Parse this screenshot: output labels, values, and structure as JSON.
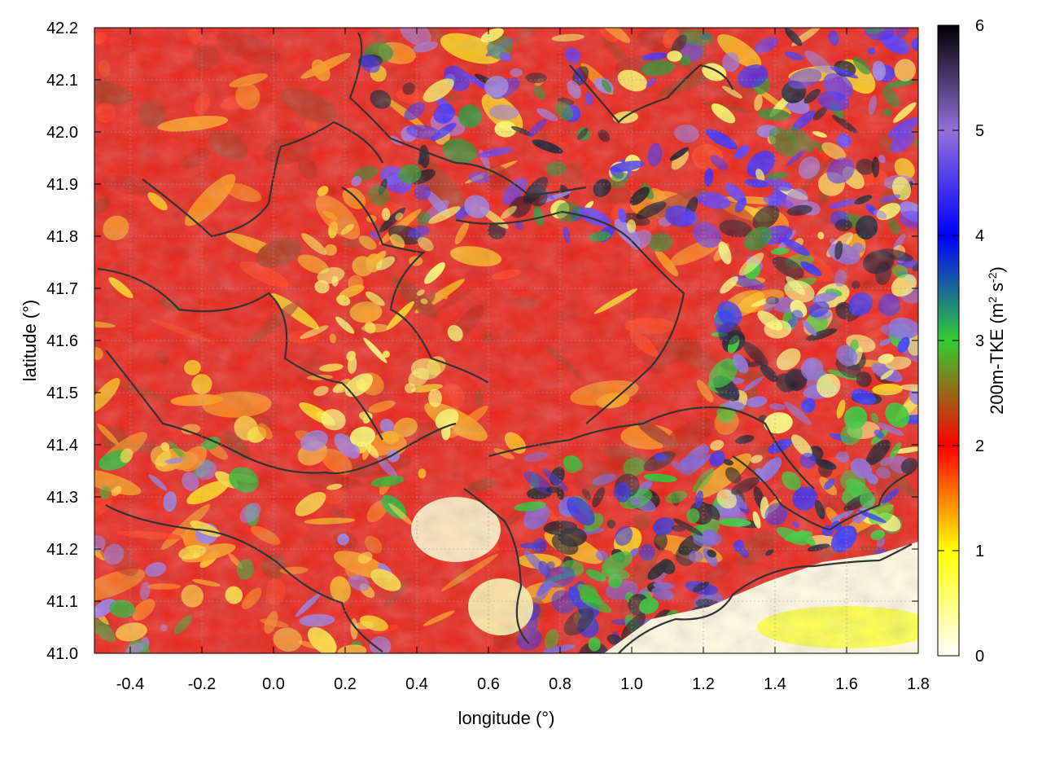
{
  "chart_data": {
    "type": "heatmap",
    "title": "",
    "xlabel": "longitude (°)",
    "ylabel": "latitude (°)",
    "xlim": [
      -0.5,
      1.8
    ],
    "ylim": [
      41.0,
      42.2
    ],
    "x_ticks": [
      "-0.4",
      "-0.2",
      "0.0",
      "0.2",
      "0.4",
      "0.6",
      "0.8",
      "1.0",
      "1.2",
      "1.4",
      "1.6",
      "1.8"
    ],
    "x_tick_values": [
      -0.4,
      -0.2,
      0.0,
      0.2,
      0.4,
      0.6,
      0.8,
      1.0,
      1.2,
      1.4,
      1.6,
      1.8
    ],
    "y_ticks": [
      "41.0",
      "41.1",
      "41.2",
      "41.3",
      "41.4",
      "41.5",
      "41.6",
      "41.7",
      "41.8",
      "41.9",
      "42.0",
      "42.1",
      "42.2"
    ],
    "y_tick_values": [
      41.0,
      41.1,
      41.2,
      41.3,
      41.4,
      41.5,
      41.6,
      41.7,
      41.8,
      41.9,
      42.0,
      42.1,
      42.2
    ],
    "grid": true,
    "colorbar": {
      "label_prefix": "200m-TKE (m",
      "label_sup1": "2",
      "label_mid": " s",
      "label_sup2": "-2",
      "label_suffix": ")",
      "range": [
        0,
        6
      ],
      "ticks": [
        "0",
        "1",
        "2",
        "3",
        "4",
        "5",
        "6"
      ],
      "tick_values": [
        0,
        1,
        2,
        3,
        4,
        5,
        6
      ],
      "palette": [
        "#ffffff",
        "#ffff00",
        "#ff0000",
        "#32cd32",
        "#0000ff",
        "#9370db",
        "#000000"
      ]
    },
    "overlay": "terrain contour lines",
    "contour_color": "#333333"
  }
}
